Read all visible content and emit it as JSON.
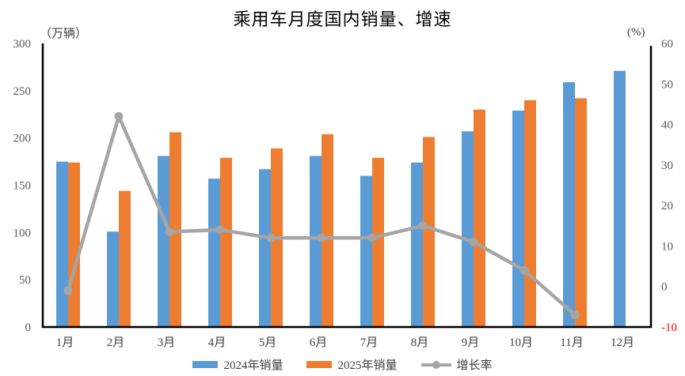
{
  "title": "乘用车月度国内销量、增速",
  "chart_data": {
    "type": "bar+line-combo",
    "title": "乘用车月度国内销量、增速",
    "categories": [
      "1月",
      "2月",
      "3月",
      "4月",
      "5月",
      "6月",
      "7月",
      "8月",
      "9月",
      "10月",
      "11月",
      "12月"
    ],
    "series": [
      {
        "name": "2024年销量",
        "type": "bar",
        "axis": "left",
        "color": "#5B9BD5",
        "values": [
          175,
          101,
          181,
          157,
          167,
          181,
          160,
          174,
          207,
          229,
          259,
          271
        ]
      },
      {
        "name": "2025年销量",
        "type": "bar",
        "axis": "left",
        "color": "#ED7D31",
        "values": [
          174,
          144,
          206,
          179,
          189,
          204,
          179,
          201,
          230,
          240,
          242,
          null
        ]
      },
      {
        "name": "增长率",
        "type": "line",
        "axis": "right",
        "color": "#A5A5A5",
        "values": [
          -1,
          42,
          13.5,
          14,
          12,
          12,
          12,
          15,
          11,
          4,
          -7,
          null
        ]
      }
    ],
    "left_axis": {
      "unit": "（万辆）",
      "min": 0,
      "max": 300,
      "ticks": [
        300,
        250,
        200,
        150,
        100,
        50,
        0
      ],
      "label_color": "#595959"
    },
    "right_axis": {
      "unit": "(%)",
      "min": -10,
      "max": 60,
      "ticks": [
        60,
        50,
        40,
        30,
        20,
        10,
        0,
        -10
      ],
      "label_color": "#595959",
      "negative_label_color": "#FF0000"
    },
    "x_axis": {
      "label_color": "#404040"
    },
    "grid": false,
    "legend_position": "bottom",
    "axis_line_color": "#000000",
    "background": "#FFFFFF"
  }
}
